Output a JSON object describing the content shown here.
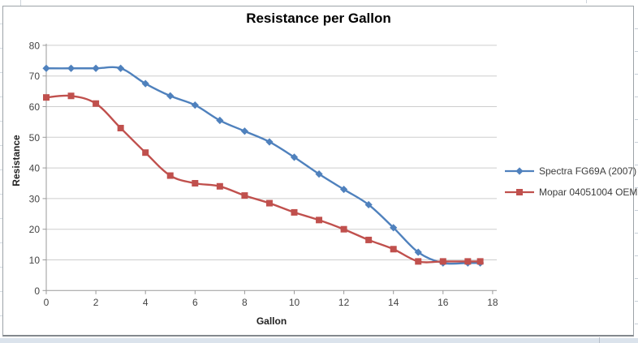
{
  "chart": {
    "title": "Resistance per Gallon",
    "x_axis_title": "Gallon",
    "y_axis_title": "Resistance"
  },
  "chart_data": {
    "type": "line",
    "title": "Resistance per Gallon",
    "xlabel": "Gallon",
    "ylabel": "Resistance",
    "xlim": [
      0,
      18
    ],
    "ylim": [
      0,
      80
    ],
    "x_ticks": [
      0,
      2,
      4,
      6,
      8,
      10,
      12,
      14,
      16,
      18
    ],
    "y_ticks": [
      0,
      10,
      20,
      30,
      40,
      50,
      60,
      70,
      80
    ],
    "grid": "horizontal",
    "line_style": "smoothed",
    "legend_position": "right",
    "x": [
      0,
      1,
      2,
      3,
      4,
      5,
      6,
      7,
      8,
      9,
      10,
      11,
      12,
      13,
      14,
      15,
      16,
      17,
      17.5
    ],
    "series": [
      {
        "name": "Spectra FG69A (2007)",
        "color": "#4F81BD",
        "marker": "diamond",
        "values": [
          72.5,
          72.5,
          72.5,
          72.5,
          67.5,
          63.5,
          60.5,
          55.5,
          52,
          48.5,
          43.5,
          38,
          33,
          28,
          20.5,
          12.5,
          9,
          9,
          9
        ]
      },
      {
        "name": "Mopar 04051004 OEM",
        "color": "#C0504D",
        "marker": "square",
        "values": [
          63,
          63.5,
          61,
          53,
          45,
          37.5,
          35,
          34,
          31,
          28.5,
          25.5,
          23,
          20,
          16.5,
          13.5,
          9.5,
          9.5,
          9.5,
          9.5
        ]
      }
    ],
    "colors": {
      "gridline": "#cdcdcd",
      "axis": "#9a9a9a",
      "tick_label": "#444444"
    }
  }
}
